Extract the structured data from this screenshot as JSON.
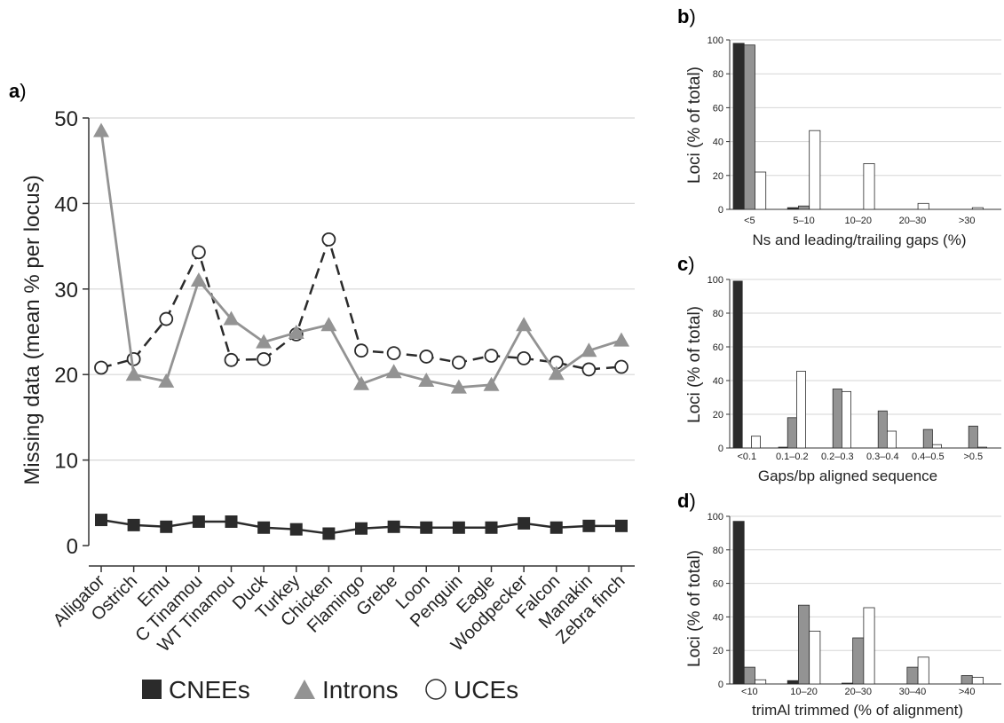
{
  "colors": {
    "cnee": "#2b2b2b",
    "intron": "#939393",
    "uce_fill": "#ffffff",
    "stroke": "#2b2b2b",
    "grid": "#d6d6d6"
  },
  "legend": {
    "cnee": "CNEEs",
    "intron": "Introns",
    "uce": "UCEs"
  },
  "chart_data": [
    {
      "panel_label": "a)",
      "type": "line",
      "ylabel": "Missing data (mean % per locus)",
      "ylim": [
        0,
        50
      ],
      "yticks": [
        0,
        10,
        20,
        30,
        40,
        50
      ],
      "grid": true,
      "legend_placement": "bottom",
      "categories": [
        "Alligator",
        "Ostrich",
        "Emu",
        "C Tinamou",
        "WT Tinamou",
        "Duck",
        "Turkey",
        "Chicken",
        "Flamingo",
        "Grebe",
        "Loon",
        "Penguin",
        "Eagle",
        "Woodpecker",
        "Falcon",
        "Manakin",
        "Zebra finch"
      ],
      "series": [
        {
          "name": "CNEEs",
          "marker": "square",
          "line": "solid",
          "values": [
            3.0,
            2.4,
            2.2,
            2.8,
            2.8,
            2.1,
            1.9,
            1.4,
            2.0,
            2.2,
            2.1,
            2.1,
            2.1,
            2.6,
            2.1,
            2.3,
            2.3
          ]
        },
        {
          "name": "Introns",
          "marker": "triangle",
          "line": "solid",
          "values": [
            48.5,
            20.0,
            19.2,
            31.0,
            26.5,
            23.8,
            24.9,
            25.8,
            18.9,
            20.3,
            19.3,
            18.5,
            18.8,
            25.8,
            20.1,
            22.8,
            24.0
          ]
        },
        {
          "name": "UCEs",
          "marker": "circle",
          "line": "dashed",
          "values": [
            20.8,
            21.8,
            26.5,
            34.3,
            21.7,
            21.8,
            24.7,
            35.8,
            22.8,
            22.5,
            22.1,
            21.4,
            22.2,
            21.9,
            21.4,
            20.6,
            20.9
          ]
        }
      ]
    },
    {
      "panel_label": "b)",
      "type": "bar",
      "ylabel": "Loci (% of total)",
      "xlabel": "Ns and leading/trailing gaps (%)",
      "ylim": [
        0,
        100
      ],
      "yticks": [
        0,
        20,
        40,
        60,
        80,
        100
      ],
      "grid": true,
      "categories": [
        "<5",
        "5–10",
        "10–20",
        "20–30",
        ">30"
      ],
      "series": [
        {
          "name": "CNEEs",
          "values": [
            98,
            1,
            0,
            0,
            0
          ]
        },
        {
          "name": "Introns",
          "values": [
            97,
            2,
            0,
            0,
            0
          ]
        },
        {
          "name": "UCEs",
          "values": [
            22,
            46.5,
            27,
            3.5,
            1
          ]
        }
      ]
    },
    {
      "panel_label": "c)",
      "type": "bar",
      "ylabel": "Loci (% of total)",
      "xlabel": "Gaps/bp aligned sequence",
      "ylim": [
        0,
        100
      ],
      "yticks": [
        0,
        20,
        40,
        60,
        80,
        100
      ],
      "grid": true,
      "categories": [
        "<0.1",
        "0.1–0.2",
        "0.2–0.3",
        "0.3–0.4",
        "0.4–0.5",
        ">0.5"
      ],
      "series": [
        {
          "name": "CNEEs",
          "values": [
            99,
            0.5,
            0,
            0,
            0,
            0
          ]
        },
        {
          "name": "Introns",
          "values": [
            0,
            18,
            35,
            22,
            11,
            13
          ]
        },
        {
          "name": "UCEs",
          "values": [
            7,
            45.5,
            33.5,
            10,
            2,
            0.5
          ]
        }
      ]
    },
    {
      "panel_label": "d)",
      "type": "bar",
      "ylabel": "Loci (% of total)",
      "xlabel": "trimAl trimmed (% of alignment)",
      "ylim": [
        0,
        100
      ],
      "yticks": [
        0,
        20,
        40,
        60,
        80,
        100
      ],
      "grid": true,
      "categories": [
        "<10",
        "10–20",
        "20–30",
        "30–40",
        ">40"
      ],
      "series": [
        {
          "name": "CNEEs",
          "values": [
            97,
            2,
            0.5,
            0,
            0
          ]
        },
        {
          "name": "Introns",
          "values": [
            10,
            47,
            27.5,
            10,
            5
          ]
        },
        {
          "name": "UCEs",
          "values": [
            2.5,
            31.5,
            45.5,
            16,
            4
          ]
        }
      ]
    }
  ]
}
